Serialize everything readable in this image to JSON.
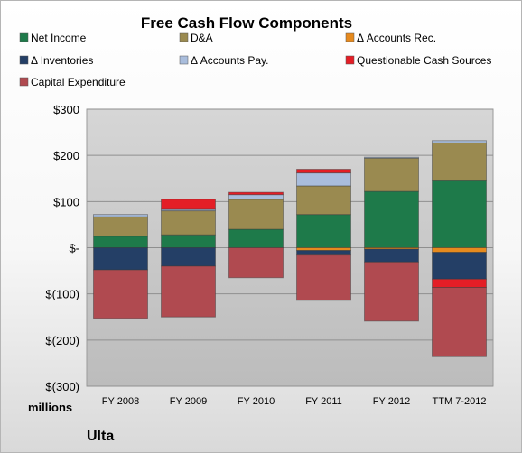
{
  "chart_data": {
    "type": "bar",
    "stacked": true,
    "title": "Free Cash Flow Components",
    "company": "Ulta",
    "unit_label": "millions",
    "categories": [
      "FY 2008",
      "FY 2009",
      "FY 2010",
      "FY 2011",
      "FY 2012",
      "TTM 7-2012"
    ],
    "ylim": [
      -300,
      300
    ],
    "yticks": [
      300,
      200,
      100,
      0,
      -100,
      -200,
      -300
    ],
    "ytick_labels": [
      "$300",
      "$200",
      "$100",
      "$-",
      "$(100)",
      "$(200)",
      "$(300)"
    ],
    "grid": true,
    "legend_position": "top",
    "series": [
      {
        "name": "Net Income",
        "color": "#1e7a4a",
        "values": [
          25,
          28,
          40,
          72,
          122,
          145
        ]
      },
      {
        "name": "D&A",
        "color": "#9a8a50",
        "values": [
          42,
          52,
          65,
          62,
          72,
          82
        ]
      },
      {
        "name": "Δ Accounts Rec.",
        "color": "#e68a1e",
        "values": [
          0,
          0,
          0,
          -6,
          -3,
          -10
        ]
      },
      {
        "name": "Δ Inventories",
        "color": "#243f66",
        "values": [
          -48,
          -40,
          0,
          -10,
          -28,
          -58
        ]
      },
      {
        "name": "Δ Accounts Pay.",
        "color": "#a9bddc",
        "values": [
          5,
          3,
          10,
          28,
          2,
          5
        ]
      },
      {
        "name": "Questionable Cash Sources",
        "color": "#e41e26",
        "values": [
          0,
          22,
          5,
          8,
          0,
          -18
        ]
      },
      {
        "name": "Capital Expenditure",
        "color": "#b04a50",
        "values": [
          -105,
          -110,
          -65,
          -98,
          -128,
          -150
        ]
      }
    ]
  }
}
